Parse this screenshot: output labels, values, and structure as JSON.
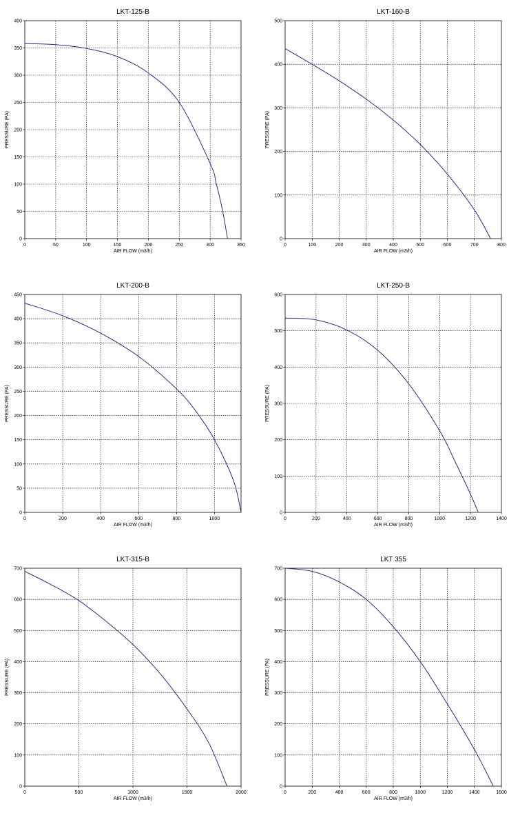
{
  "chart_data": [
    {
      "type": "line",
      "title": "LKT-125-B",
      "xlabel": "AIR FLOW (m3/h)",
      "ylabel": "PRESSURE (PA)",
      "xlim": [
        0,
        350
      ],
      "ylim": [
        0,
        400
      ],
      "xticks": [
        0,
        50,
        100,
        150,
        200,
        250,
        300,
        350
      ],
      "yticks": [
        0,
        50,
        100,
        150,
        200,
        250,
        300,
        350,
        400
      ],
      "grid": true,
      "series": [
        {
          "x": [
            0,
            50,
            100,
            150,
            200,
            250,
            300,
            310,
            320,
            328
          ],
          "y": [
            358,
            356,
            349,
            334,
            304,
            250,
            138,
            100,
            52,
            0
          ]
        }
      ]
    },
    {
      "type": "line",
      "title": "LKT-160-B",
      "xlabel": "AIR FLOW (m3/h)",
      "ylabel": "PRESSURE (PA)",
      "xlim": [
        0,
        800
      ],
      "ylim": [
        0,
        500
      ],
      "xticks": [
        0,
        100,
        200,
        300,
        400,
        500,
        600,
        700,
        800
      ],
      "yticks": [
        0,
        100,
        200,
        300,
        400,
        500
      ],
      "grid": true,
      "series": [
        {
          "x": [
            0,
            100,
            200,
            300,
            400,
            500,
            600,
            700,
            760
          ],
          "y": [
            436,
            400,
            362,
            320,
            272,
            216,
            148,
            66,
            0
          ]
        }
      ]
    },
    {
      "type": "line",
      "title": "LKT-200-B",
      "xlabel": "AIR FLOW (m3/h)",
      "ylabel": "PRESSURE (PA)",
      "xlim": [
        0,
        1140
      ],
      "ylim": [
        0,
        450
      ],
      "xticks": [
        0,
        200,
        400,
        600,
        800,
        1000
      ],
      "yticks": [
        0,
        50,
        100,
        150,
        200,
        250,
        300,
        350,
        400,
        450
      ],
      "grid": true,
      "series": [
        {
          "x": [
            0,
            200,
            400,
            600,
            800,
            900,
            1000,
            1100,
            1140
          ],
          "y": [
            432,
            406,
            370,
            322,
            255,
            210,
            150,
            66,
            0
          ]
        }
      ]
    },
    {
      "type": "line",
      "title": "LKT-250-B",
      "xlabel": "AIR FLOW (m3/h)",
      "ylabel": "PRESSURE (PA)",
      "xlim": [
        0,
        1400
      ],
      "ylim": [
        0,
        600
      ],
      "xticks": [
        0,
        200,
        400,
        600,
        800,
        1000,
        1200,
        1400
      ],
      "yticks": [
        0,
        100,
        200,
        300,
        400,
        500,
        600
      ],
      "grid": true,
      "series": [
        {
          "x": [
            0,
            200,
            400,
            600,
            800,
            1000,
            1100,
            1200,
            1250
          ],
          "y": [
            535,
            530,
            502,
            446,
            354,
            225,
            140,
            50,
            0
          ]
        }
      ]
    },
    {
      "type": "line",
      "title": "LKT-315-B",
      "xlabel": "AIR FLOW (m3/h)",
      "ylabel": "PRESSURE (PA)",
      "xlim": [
        0,
        2000
      ],
      "ylim": [
        0,
        700
      ],
      "xticks": [
        0,
        500,
        1000,
        1500,
        2000
      ],
      "yticks": [
        0,
        100,
        200,
        300,
        400,
        500,
        600,
        700
      ],
      "grid": true,
      "series": [
        {
          "x": [
            0,
            250,
            500,
            750,
            1000,
            1250,
            1500,
            1700,
            1870
          ],
          "y": [
            690,
            646,
            596,
            530,
            455,
            362,
            248,
            140,
            0
          ]
        }
      ]
    },
    {
      "type": "line",
      "title": "LKT 355",
      "xlabel": "AIR FLOW (m3/h)",
      "ylabel": "PRESSURE (PA)",
      "xlim": [
        0,
        1600
      ],
      "ylim": [
        0,
        700
      ],
      "xticks": [
        0,
        200,
        400,
        600,
        800,
        1000,
        1200,
        1400,
        1600
      ],
      "yticks": [
        0,
        100,
        200,
        300,
        400,
        500,
        600,
        700
      ],
      "grid": true,
      "series": [
        {
          "x": [
            0,
            200,
            400,
            600,
            800,
            1000,
            1200,
            1400,
            1540
          ],
          "y": [
            700,
            690,
            656,
            600,
            512,
            400,
            264,
            118,
            0
          ]
        }
      ]
    }
  ]
}
